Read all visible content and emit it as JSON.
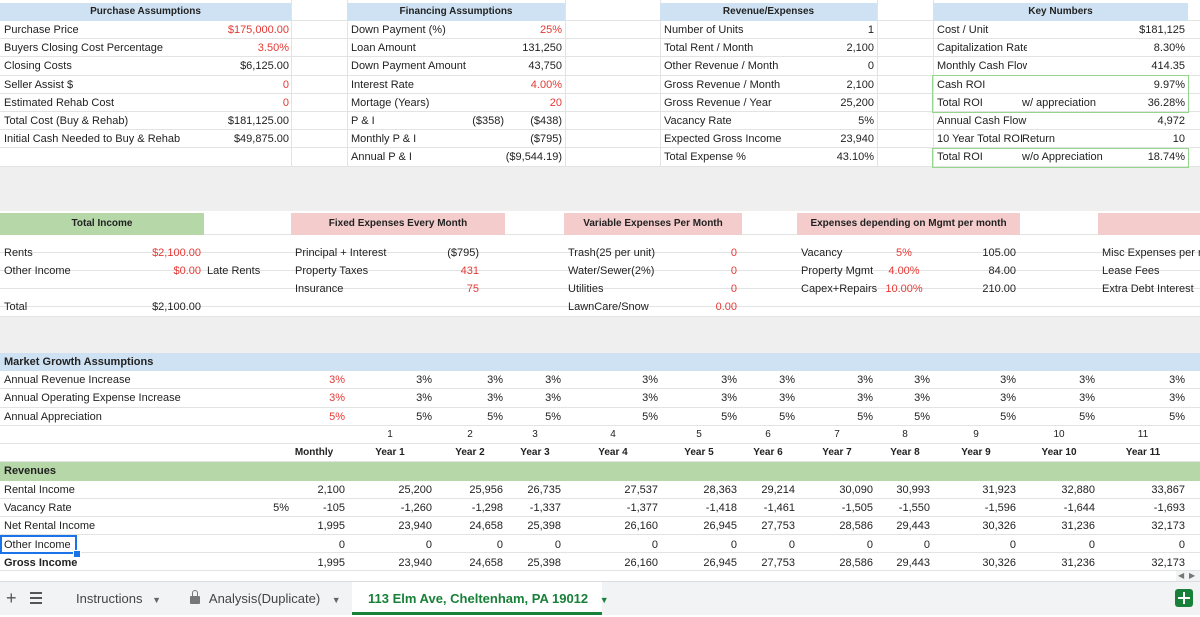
{
  "colors": {
    "blue_header": "#cfe2f3",
    "green_header": "#b6d7a8",
    "red_header": "#f4cccc",
    "red_text": "#e53935",
    "active_tab": "#188038"
  },
  "purchase": {
    "title": "Purchase Assumptions",
    "rows": [
      {
        "label": "Purchase Price",
        "value": "$175,000.00"
      },
      {
        "label": "Buyers Closing Cost Percentage",
        "value": "3.50%"
      },
      {
        "label": "Closing Costs",
        "value": "$6,125.00"
      },
      {
        "label": "Seller Assist $",
        "value": "0"
      },
      {
        "label": "Estimated Rehab Cost",
        "value": "0"
      },
      {
        "label": "Total Cost (Buy & Rehab)",
        "value": "$181,125.00"
      },
      {
        "label": "Initial Cash Needed to Buy & Rehab",
        "value": "$49,875.00"
      }
    ]
  },
  "financing": {
    "title": "Financing Assumptions",
    "rows": [
      {
        "label": "Down Payment (%)",
        "extra": "",
        "value": "25%"
      },
      {
        "label": "Loan Amount",
        "extra": "",
        "value": "131,250"
      },
      {
        "label": "Down Payment Amount",
        "extra": "",
        "value": "43,750"
      },
      {
        "label": "Interest Rate",
        "extra": "",
        "value": "4.00%"
      },
      {
        "label": "Mortage (Years)",
        "extra": "",
        "value": "20"
      },
      {
        "label": "P & I",
        "extra": "($358)",
        "value": "($438)"
      },
      {
        "label": "Monthly P & I",
        "extra": "",
        "value": "($795)"
      },
      {
        "label": "Annual P & I",
        "extra": "",
        "value": "($9,544.19)"
      }
    ]
  },
  "revenue_expenses": {
    "title": "Revenue/Expenses",
    "rows": [
      {
        "label": "Number of Units",
        "value": "1"
      },
      {
        "label": "Total Rent / Month",
        "value": "2,100"
      },
      {
        "label": "Other Revenue / Month",
        "value": "0"
      },
      {
        "label": "Gross Revenue / Month",
        "value": "2,100"
      },
      {
        "label": "Gross Revenue / Year",
        "value": "25,200"
      },
      {
        "label": "Vacancy Rate",
        "value": "5%"
      },
      {
        "label": "Expected Gross Income",
        "value": "23,940"
      },
      {
        "label": "Total Expense %",
        "value": "43.10%"
      }
    ]
  },
  "key_numbers": {
    "title": "Key Numbers",
    "rows": [
      {
        "label": "Cost / Unit",
        "note": "",
        "value": "$181,125"
      },
      {
        "label": "Capitalization Rate",
        "note": "",
        "value": "8.30%"
      },
      {
        "label": "Monthly Cash Flow",
        "note": "",
        "value": "414.35"
      },
      {
        "label": "Cash ROI",
        "note": "",
        "value": "9.97%"
      },
      {
        "label": "Total ROI",
        "note": "w/ appreciation",
        "value": "36.28%"
      },
      {
        "label": "Annual Cash Flow",
        "note": "",
        "value": "4,972"
      },
      {
        "label": "10 Year Total ROI",
        "note": "Return",
        "value": "10"
      },
      {
        "label": "Total ROI",
        "note": "w/o Appreciation",
        "value": "18.74%"
      }
    ]
  },
  "income": {
    "title": "Total Income",
    "rows": [
      {
        "label": "Rents",
        "value": "$2,100.00",
        "extra": ""
      },
      {
        "label": "Other Income",
        "value": "$0.00",
        "extra": "Late Rents"
      }
    ],
    "total_label": "Total",
    "total_value": "$2,100.00"
  },
  "fixed": {
    "title": "Fixed Expenses Every Month",
    "rows": [
      {
        "label": "Principal  + Interest",
        "value": "($795)"
      },
      {
        "label": "Property Taxes",
        "value": "431"
      },
      {
        "label": "Insurance",
        "value": "75"
      }
    ]
  },
  "variable": {
    "title": "Variable Expenses Per Month",
    "rows": [
      {
        "label": "Trash(25 per unit)",
        "value": "0"
      },
      {
        "label": "Water/Sewer(2%)",
        "value": "0"
      },
      {
        "label": "Utilities",
        "value": "0"
      },
      {
        "label": "LawnCare/Snow",
        "value": "0.00"
      }
    ]
  },
  "mgmt": {
    "title": "Expenses depending on Mgmt per month",
    "rows": [
      {
        "label": "Vacancy",
        "pct": "5%",
        "value": "105.00"
      },
      {
        "label": "Property Mgmt",
        "pct": "4.00%",
        "value": "84.00"
      },
      {
        "label": "Capex+Repairs",
        "pct": "10.00%",
        "value": "210.00"
      }
    ]
  },
  "misc": {
    "rows": [
      {
        "label": "Misc Expenses per m"
      },
      {
        "label": "Lease Fees"
      },
      {
        "label": "Extra Debt Interest"
      }
    ]
  },
  "growth": {
    "title": "Market Growth Assumptions",
    "rows": [
      {
        "label": "Annual Revenue Increase",
        "values": [
          "3%",
          "3%",
          "3%",
          "3%",
          "3%",
          "3%",
          "3%",
          "3%",
          "3%",
          "3%",
          "3%",
          "3%"
        ]
      },
      {
        "label": "Annual Operating Expense Increase",
        "values": [
          "3%",
          "3%",
          "3%",
          "3%",
          "3%",
          "3%",
          "3%",
          "3%",
          "3%",
          "3%",
          "3%",
          "3%"
        ]
      },
      {
        "label": "Annual Appreciation",
        "values": [
          "5%",
          "5%",
          "5%",
          "5%",
          "5%",
          "5%",
          "5%",
          "5%",
          "5%",
          "5%",
          "5%",
          "5%"
        ]
      }
    ]
  },
  "projection": {
    "year_numbers": [
      "1",
      "2",
      "3",
      "4",
      "5",
      "6",
      "7",
      "8",
      "9",
      "10",
      "11"
    ],
    "headers": [
      "Monthly",
      "Year 1",
      "Year 2",
      "Year 3",
      "Year 4",
      "Year 5",
      "Year 6",
      "Year 7",
      "Year 8",
      "Year 9",
      "Year 10",
      "Year 11"
    ],
    "section_label": "Revenues",
    "rows": [
      {
        "label": "Rental Income",
        "pct": "",
        "values": [
          "2,100",
          "25,200",
          "25,956",
          "26,735",
          "27,537",
          "28,363",
          "29,214",
          "30,090",
          "30,993",
          "31,923",
          "32,880",
          "33,867"
        ]
      },
      {
        "label": "Vacancy Rate",
        "pct": "5%",
        "values": [
          "-105",
          "-1,260",
          "-1,298",
          "-1,337",
          "-1,377",
          "-1,418",
          "-1,461",
          "-1,505",
          "-1,550",
          "-1,596",
          "-1,644",
          "-1,693"
        ]
      },
      {
        "label": "Net Rental Income",
        "pct": "",
        "values": [
          "1,995",
          "23,940",
          "24,658",
          "25,398",
          "26,160",
          "26,945",
          "27,753",
          "28,586",
          "29,443",
          "30,326",
          "31,236",
          "32,173"
        ]
      },
      {
        "label": "Other Income",
        "pct": "",
        "values": [
          "0",
          "0",
          "0",
          "0",
          "0",
          "0",
          "0",
          "0",
          "0",
          "0",
          "0",
          "0"
        ]
      },
      {
        "label": "Gross Income",
        "pct": "",
        "values": [
          "1,995",
          "23,940",
          "24,658",
          "25,398",
          "26,160",
          "26,945",
          "27,753",
          "28,586",
          "29,443",
          "30,326",
          "31,236",
          "32,173"
        ]
      }
    ]
  },
  "tabs": {
    "add_icon": "plus-icon",
    "list_icon": "sheet-list-icon",
    "items": [
      {
        "label": "Instructions"
      },
      {
        "label": "Analysis(Duplicate)"
      },
      {
        "label": "113 Elm Ave, Cheltenham, PA 19012"
      }
    ]
  }
}
